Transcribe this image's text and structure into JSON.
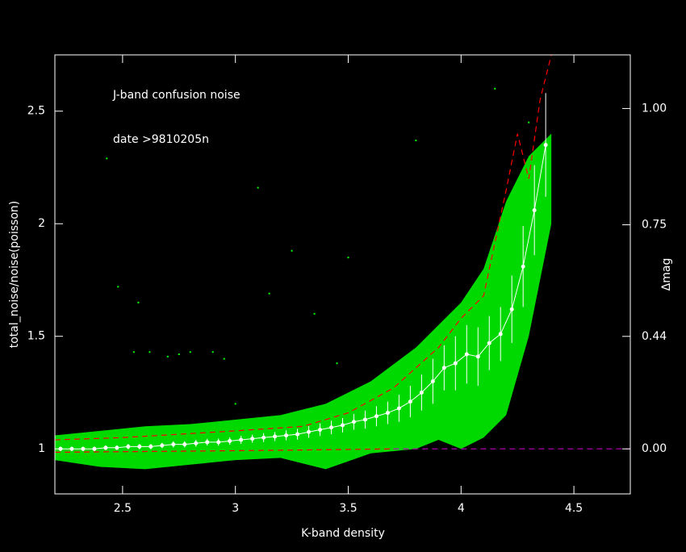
{
  "chart_data": {
    "type": "scatter",
    "annotations": [
      "J-band confusion noise",
      "date >9810205n"
    ],
    "xlabel": "K-band density",
    "ylabel": "total_noise/noise(poisson)",
    "y2label": "Δmag",
    "xlim": [
      2.2,
      4.75
    ],
    "ylim": [
      0.8,
      2.75
    ],
    "xticks": [
      2.5,
      3,
      3.5,
      4,
      4.5
    ],
    "yticks": [
      1,
      1.5,
      2,
      2.5
    ],
    "y2scale": "magnitude",
    "y2ticks": [
      {
        "value": 1.0,
        "label": "1.00"
      },
      {
        "value": 0.75,
        "label": "0.75"
      },
      {
        "value": 0.44,
        "label": "0.44"
      },
      {
        "value": 0.0,
        "label": "0.00"
      }
    ],
    "cloud": {
      "color": "#00ff00",
      "x": [
        2.2,
        2.4,
        2.6,
        2.8,
        3.0,
        3.2,
        3.4,
        3.6,
        3.8,
        3.9,
        4.0,
        4.1,
        4.2,
        4.3,
        4.4
      ],
      "low": [
        0.95,
        0.92,
        0.91,
        0.93,
        0.95,
        0.96,
        0.91,
        0.98,
        1.0,
        1.04,
        1.0,
        1.05,
        1.15,
        1.5,
        2.0
      ],
      "high": [
        1.06,
        1.08,
        1.1,
        1.11,
        1.13,
        1.15,
        1.2,
        1.3,
        1.45,
        1.55,
        1.65,
        1.8,
        2.1,
        2.3,
        2.4
      ]
    },
    "outliers": {
      "color": "#00ff00",
      "x": [
        2.43,
        2.62,
        2.7,
        2.75,
        2.8,
        2.57,
        2.95,
        3.15,
        3.35,
        3.5,
        3.8,
        3.0,
        2.48,
        2.55,
        3.25,
        4.15,
        4.3,
        3.1,
        2.9,
        3.45
      ],
      "values": [
        2.29,
        1.43,
        1.41,
        1.42,
        1.43,
        1.65,
        1.4,
        1.69,
        1.6,
        1.85,
        2.37,
        1.2,
        1.72,
        1.43,
        1.88,
        2.6,
        2.45,
        2.16,
        1.43,
        1.38
      ]
    },
    "series": [
      {
        "color": "#ffffff",
        "x": [
          2.225,
          2.275,
          2.325,
          2.375,
          2.425,
          2.475,
          2.525,
          2.575,
          2.625,
          2.675,
          2.725,
          2.775,
          2.825,
          2.875,
          2.925,
          2.975,
          3.025,
          3.075,
          3.125,
          3.175,
          3.225,
          3.275,
          3.325,
          3.375,
          3.425,
          3.475,
          3.525,
          3.575,
          3.625,
          3.675,
          3.725,
          3.775,
          3.825,
          3.875,
          3.925,
          3.975,
          4.025,
          4.075,
          4.125,
          4.175,
          4.225,
          4.275,
          4.325,
          4.375
        ],
        "values": [
          1.0,
          1.0,
          1.0,
          1.0,
          1.005,
          1.005,
          1.01,
          1.01,
          1.01,
          1.015,
          1.02,
          1.02,
          1.025,
          1.03,
          1.03,
          1.035,
          1.04,
          1.045,
          1.05,
          1.055,
          1.06,
          1.065,
          1.075,
          1.085,
          1.095,
          1.105,
          1.12,
          1.13,
          1.145,
          1.16,
          1.18,
          1.21,
          1.25,
          1.3,
          1.36,
          1.38,
          1.42,
          1.41,
          1.47,
          1.51,
          1.62,
          1.81,
          2.06,
          2.35
        ],
        "errors": [
          0.01,
          0.01,
          0.01,
          0.01,
          0.01,
          0.01,
          0.012,
          0.012,
          0.012,
          0.012,
          0.014,
          0.014,
          0.015,
          0.015,
          0.016,
          0.016,
          0.018,
          0.018,
          0.02,
          0.02,
          0.022,
          0.024,
          0.026,
          0.028,
          0.03,
          0.032,
          0.035,
          0.04,
          0.045,
          0.05,
          0.06,
          0.07,
          0.08,
          0.1,
          0.1,
          0.12,
          0.13,
          0.13,
          0.12,
          0.12,
          0.15,
          0.18,
          0.2,
          0.23
        ]
      }
    ],
    "lines": [
      {
        "color": "#ff0000",
        "dash": true,
        "x": [
          2.2,
          2.5,
          3.0,
          3.3,
          3.5,
          3.7,
          3.9,
          4.0,
          4.1,
          4.2,
          4.25,
          4.3,
          4.35,
          4.4
        ],
        "values": [
          1.04,
          1.05,
          1.08,
          1.1,
          1.16,
          1.27,
          1.45,
          1.58,
          1.68,
          2.15,
          2.4,
          2.2,
          2.55,
          2.75
        ]
      },
      {
        "color": "#ff0000",
        "dash": true,
        "x": [
          2.2,
          2.8,
          3.3,
          3.7
        ],
        "values": [
          0.985,
          0.99,
          0.995,
          1.0
        ]
      },
      {
        "color": "#c000c0",
        "dash": true,
        "x": [
          3.7,
          4.75
        ],
        "values": [
          1,
          1
        ]
      }
    ]
  }
}
